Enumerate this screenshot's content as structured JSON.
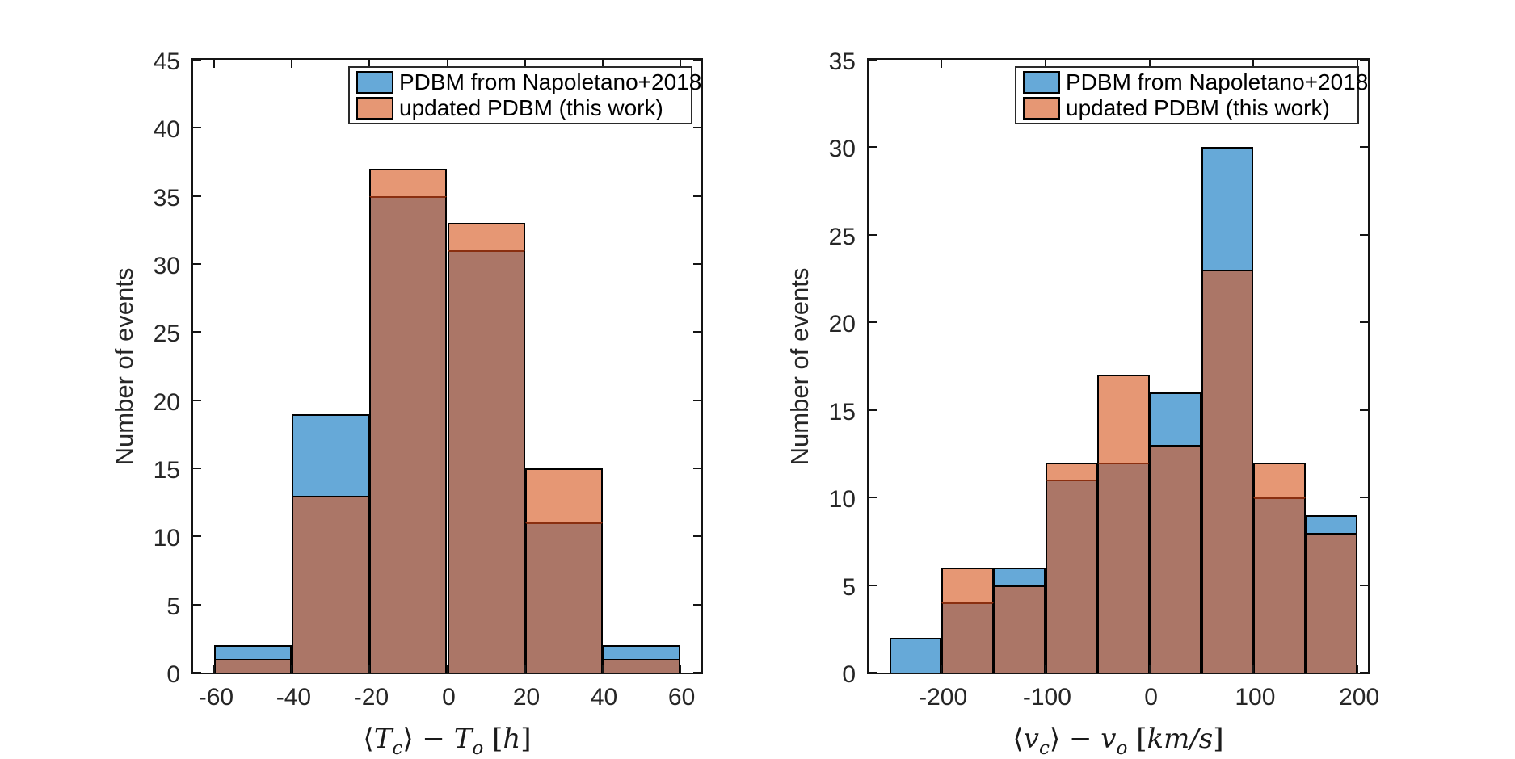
{
  "figure": {
    "background": "#ffffff",
    "description": "Two overlaid histograms comparing PDBM model errors"
  },
  "colors": {
    "series_blue": "#66a9d8",
    "series_orange": "#e69774",
    "overlap_brown": "#ab7667",
    "edge_black": "#000000",
    "divider_under_orange": "#8a2f10",
    "axis": "#151515",
    "text": "#262626"
  },
  "legend": {
    "items": [
      {
        "label": "PDBM from Napoletano+2018",
        "color_key": "series_blue"
      },
      {
        "label": "updated PDBM (this work)",
        "color_key": "series_orange"
      }
    ]
  },
  "chart_data": [
    {
      "type": "bar",
      "variant": "overlaid_histogram",
      "title": "",
      "ylabel": "Number of events",
      "xlabel": "⟨Tc⟩ − To [h]",
      "xlabel_parts": [
        {
          "t": "⟨"
        },
        {
          "t": "T",
          "i": true
        },
        {
          "t": "c",
          "sub": true
        },
        {
          "t": "⟩ − "
        },
        {
          "t": "T",
          "i": true
        },
        {
          "t": "o",
          "sub": true
        },
        {
          "t": " ["
        },
        {
          "t": "h",
          "i": true
        },
        {
          "t": "]"
        }
      ],
      "bin_edges": [
        -60,
        -40,
        -20,
        0,
        20,
        40,
        60
      ],
      "series": [
        {
          "name": "PDBM from Napoletano+2018",
          "color_key": "series_blue",
          "values": [
            2,
            19,
            35,
            31,
            11,
            2
          ]
        },
        {
          "name": "updated PDBM (this work)",
          "color_key": "series_orange",
          "values": [
            1,
            13,
            37,
            33,
            15,
            1
          ]
        }
      ],
      "ylim": [
        0,
        45
      ],
      "xlim": [
        -65.5,
        65.5
      ],
      "yticks": [
        0,
        5,
        10,
        15,
        20,
        25,
        30,
        35,
        40,
        45
      ],
      "ytick_labels": [
        "0",
        "5",
        "10",
        "15",
        "20",
        "25",
        "30",
        "35",
        "40",
        "45"
      ],
      "xticks": [
        -60,
        -40,
        -20,
        0,
        20,
        40,
        60
      ],
      "xtick_labels": [
        "-60",
        "-40",
        "-20",
        "0",
        "20",
        "40",
        "60"
      ],
      "legend_position": "top-right",
      "grid": false
    },
    {
      "type": "bar",
      "variant": "overlaid_histogram",
      "title": "",
      "ylabel": "Number of events",
      "xlabel": "⟨vc⟩ − vo [km/s]",
      "xlabel_parts": [
        {
          "t": "⟨"
        },
        {
          "t": "v",
          "i": true
        },
        {
          "t": "c",
          "sub": true
        },
        {
          "t": "⟩ − "
        },
        {
          "t": "v",
          "i": true
        },
        {
          "t": "o",
          "sub": true
        },
        {
          "t": " ["
        },
        {
          "t": "km/s",
          "i": true
        },
        {
          "t": "]"
        }
      ],
      "bin_edges": [
        -250,
        -200,
        -150,
        -100,
        -50,
        0,
        50,
        100,
        150,
        200
      ],
      "series": [
        {
          "name": "PDBM from Napoletano+2018",
          "color_key": "series_blue",
          "values": [
            2,
            4,
            6,
            11,
            12,
            16,
            30,
            10,
            9
          ]
        },
        {
          "name": "updated PDBM (this work)",
          "color_key": "series_orange",
          "values": [
            0,
            6,
            5,
            12,
            17,
            13,
            23,
            12,
            8
          ]
        }
      ],
      "ylim": [
        0,
        35
      ],
      "xlim": [
        -270,
        210
      ],
      "yticks": [
        0,
        5,
        10,
        15,
        20,
        25,
        30,
        35
      ],
      "ytick_labels": [
        "0",
        "5",
        "10",
        "15",
        "20",
        "25",
        "30",
        "35"
      ],
      "xticks": [
        -200,
        -100,
        0,
        100,
        200
      ],
      "xtick_labels": [
        "-200",
        "-100",
        "0",
        "100",
        "200"
      ],
      "legend_position": "top-right",
      "grid": false
    }
  ]
}
